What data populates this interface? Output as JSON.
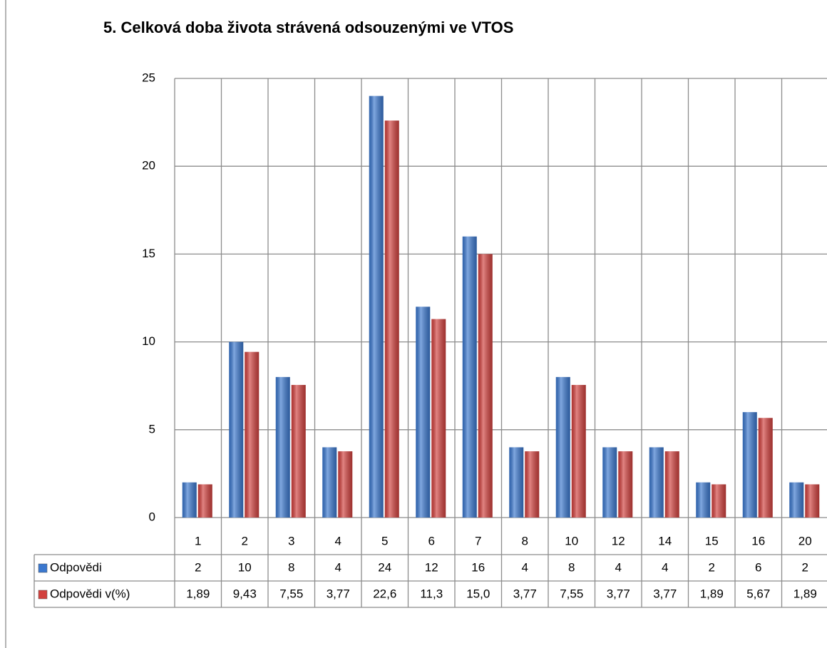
{
  "chart_data": {
    "type": "bar",
    "title": "5. Celková doba života strávená odsouzenými ve VTOS",
    "categories": [
      "1",
      "2",
      "3",
      "4",
      "5",
      "6",
      "7",
      "8",
      "10",
      "12",
      "14",
      "15",
      "16",
      "20"
    ],
    "series": [
      {
        "name": "Odpovědi",
        "color": "#3b78cf",
        "values": [
          2,
          10,
          8,
          4,
          24,
          12,
          16,
          4,
          8,
          4,
          4,
          2,
          6,
          2
        ]
      },
      {
        "name": "Odpovědi v(%)",
        "color": "#d2413e",
        "values": [
          1.89,
          9.43,
          7.55,
          3.77,
          22.6,
          11.3,
          15.0,
          3.77,
          7.55,
          3.77,
          3.77,
          1.89,
          5.67,
          1.89
        ],
        "value_labels": [
          "1,89",
          "9,43",
          "7,55",
          "3,77",
          "22,6",
          "11,3",
          "15,0",
          "3,77",
          "7,55",
          "3,77",
          "3,77",
          "1,89",
          "5,67",
          "1,89"
        ]
      }
    ],
    "ylim": [
      0,
      25
    ],
    "yticks": [
      0,
      5,
      10,
      15,
      20,
      25
    ],
    "grid": true
  }
}
